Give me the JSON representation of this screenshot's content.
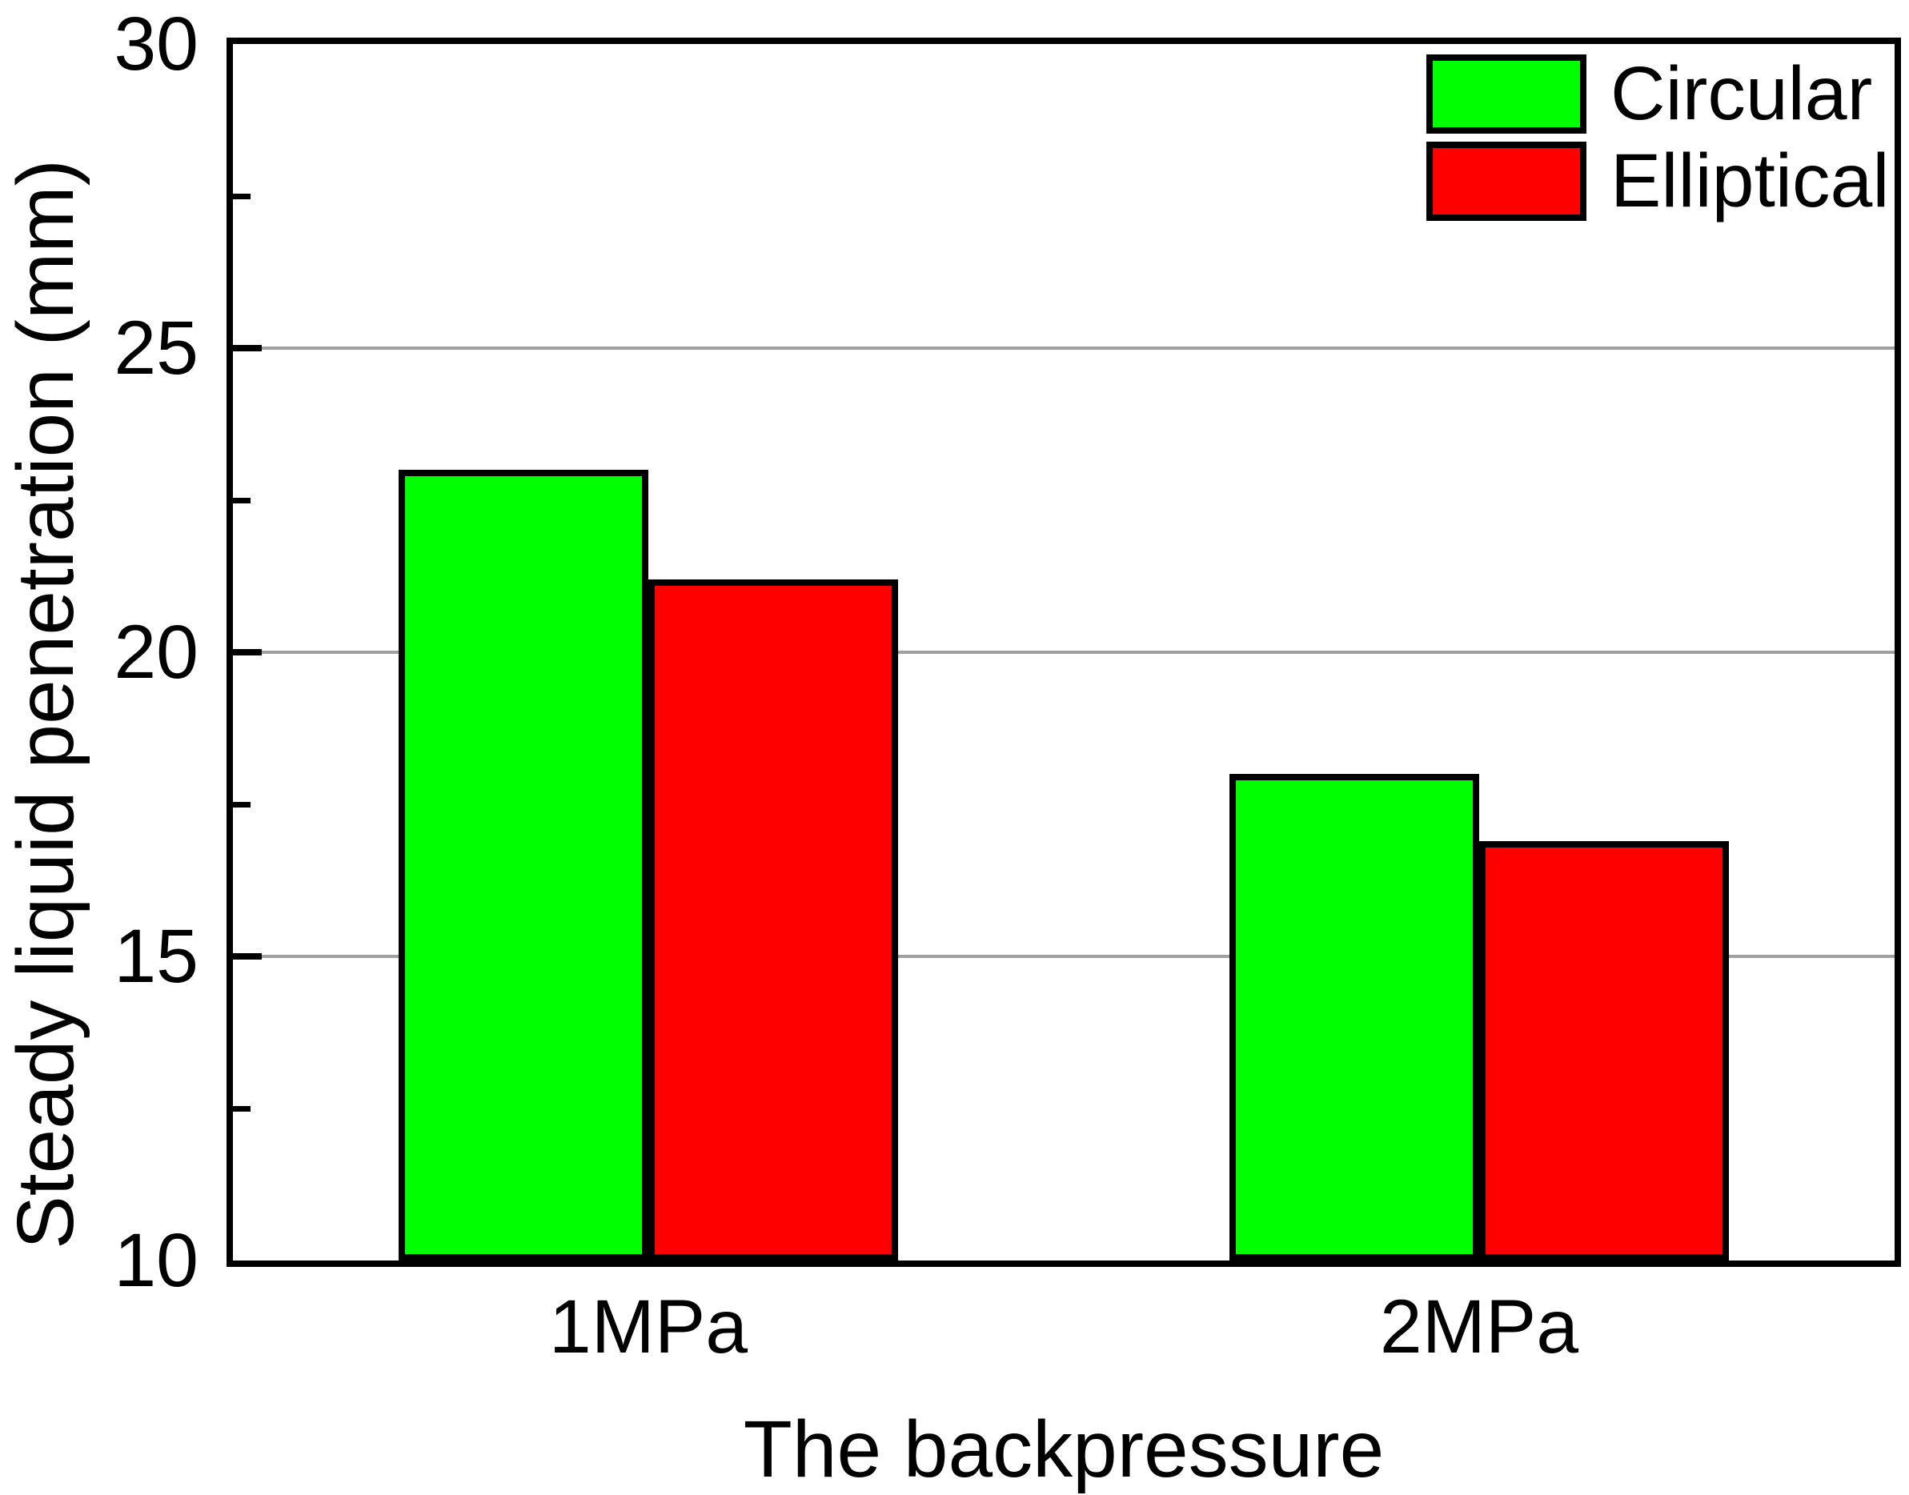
{
  "chart_data": {
    "type": "bar",
    "title": "",
    "xlabel": "The backpressure",
    "ylabel": "Steady liquid penetration (mm)",
    "categories": [
      "1MPa",
      "2MPa"
    ],
    "series": [
      {
        "name": "Circular",
        "color": "#00ff00",
        "values": [
          23.0,
          18.0
        ]
      },
      {
        "name": "Elliptical",
        "color": "#ff0000",
        "values": [
          21.2,
          16.9
        ]
      }
    ],
    "ylim": [
      10,
      30
    ],
    "yticks_major": [
      10,
      15,
      20,
      25,
      30
    ],
    "ytick_labels": [
      "10",
      "15",
      "20",
      "25",
      "30"
    ],
    "yticks_minor": [
      12.5,
      17.5,
      22.5,
      27.5
    ],
    "gridlines_at": [
      15,
      20,
      25
    ],
    "grid_color": "#a0a0a0",
    "bar_edge_color": "#000000",
    "background_color": "#ffffff",
    "legend_position": "top-right",
    "legend_labels": [
      "Circular",
      "Elliptical"
    ]
  }
}
